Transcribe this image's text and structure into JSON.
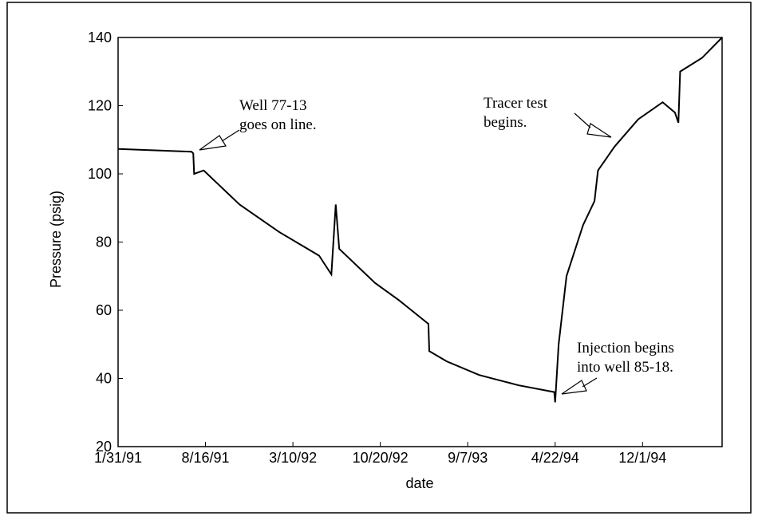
{
  "chart_data": {
    "type": "line",
    "y_label": "Pressure (psig)",
    "x_label": "date",
    "xlim": [
      0,
      6.91
    ],
    "xticks": [
      {
        "value": 0,
        "label": "1/31/91"
      },
      {
        "value": 1,
        "label": "8/16/91"
      },
      {
        "value": 2,
        "label": "3/10/92"
      },
      {
        "value": 3,
        "label": "10/20/92"
      },
      {
        "value": 4,
        "label": "9/7/93"
      },
      {
        "value": 5,
        "label": "4/22/94"
      },
      {
        "value": 6,
        "label": "12/1/94"
      }
    ],
    "ylim": [
      20,
      140
    ],
    "yticks": [
      20,
      40,
      60,
      80,
      100,
      120,
      140
    ],
    "series": [
      {
        "color": "#000000",
        "x": [
          0,
          0.84,
          0.86,
          0.87,
          0.98,
          1.39,
          1.84,
          2.3,
          2.44,
          2.49,
          2.53,
          2.94,
          3.21,
          3.55,
          3.56,
          3.76,
          4.13,
          4.58,
          4.99,
          5.0,
          5.04,
          5.13,
          5.32,
          5.45,
          5.49,
          5.68,
          5.95,
          6.23,
          6.37,
          6.41,
          6.43,
          6.68,
          6.91
        ],
        "values": [
          107.3,
          106.5,
          106,
          100,
          101,
          91,
          83,
          76,
          70.5,
          91,
          78,
          68,
          63,
          56,
          48,
          45,
          41,
          38,
          36,
          33,
          50,
          70,
          85,
          92,
          101,
          108,
          116,
          121,
          118,
          115,
          130,
          134,
          140
        ]
      }
    ],
    "annotations": [
      {
        "lines": [
          "Well 77-13",
          "goes on line."
        ]
      },
      {
        "lines": [
          "Tracer test",
          "begins."
        ]
      },
      {
        "lines": [
          "Injection begins",
          "into well 85-18."
        ]
      }
    ]
  }
}
